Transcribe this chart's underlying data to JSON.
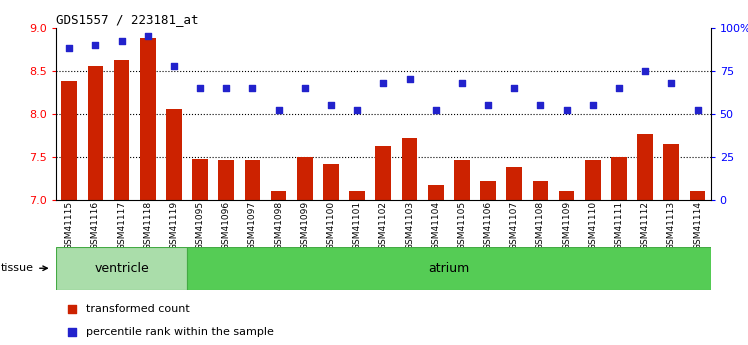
{
  "title": "GDS1557 / 223181_at",
  "categories": [
    "GSM41115",
    "GSM41116",
    "GSM41117",
    "GSM41118",
    "GSM41119",
    "GSM41095",
    "GSM41096",
    "GSM41097",
    "GSM41098",
    "GSM41099",
    "GSM41100",
    "GSM41101",
    "GSM41102",
    "GSM41103",
    "GSM41104",
    "GSM41105",
    "GSM41106",
    "GSM41107",
    "GSM41108",
    "GSM41109",
    "GSM41110",
    "GSM41111",
    "GSM41112",
    "GSM41113",
    "GSM41114"
  ],
  "bar_values": [
    8.38,
    8.55,
    8.63,
    8.88,
    8.06,
    7.48,
    7.47,
    7.47,
    7.1,
    7.5,
    7.42,
    7.1,
    7.63,
    7.72,
    7.18,
    7.46,
    7.22,
    7.38,
    7.22,
    7.1,
    7.47,
    7.5,
    7.77,
    7.65,
    7.1
  ],
  "percentile_values": [
    88,
    90,
    92,
    95,
    78,
    65,
    65,
    65,
    52,
    65,
    55,
    52,
    68,
    70,
    52,
    68,
    55,
    65,
    55,
    52,
    55,
    65,
    75,
    68,
    52
  ],
  "bar_color": "#cc2200",
  "dot_color": "#2222cc",
  "left_ylim": [
    7,
    9
  ],
  "right_ylim": [
    0,
    100
  ],
  "left_yticks": [
    7,
    7.5,
    8,
    8.5,
    9
  ],
  "right_yticks": [
    0,
    25,
    50,
    75,
    100
  ],
  "right_yticklabels": [
    "0",
    "25",
    "50",
    "75",
    "100%"
  ],
  "grid_lines": [
    7.5,
    8.0,
    8.5
  ],
  "ventricle_samples": 5,
  "ventricle_label": "ventricle",
  "atrium_label": "atrium",
  "tissue_label": "tissue",
  "legend_bar_label": "transformed count",
  "legend_dot_label": "percentile rank within the sample",
  "group_bg_ventricle": "#aaddaa",
  "group_bg_atrium": "#55cc55"
}
